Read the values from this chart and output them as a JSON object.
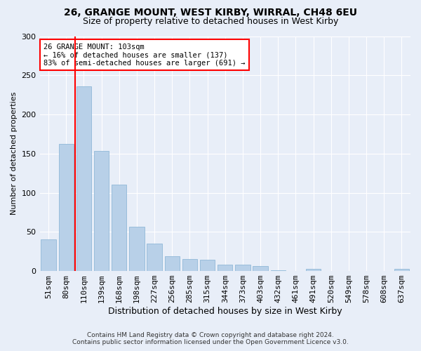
{
  "title1": "26, GRANGE MOUNT, WEST KIRBY, WIRRAL, CH48 6EU",
  "title2": "Size of property relative to detached houses in West Kirby",
  "xlabel": "Distribution of detached houses by size in West Kirby",
  "ylabel": "Number of detached properties",
  "categories": [
    "51sqm",
    "80sqm",
    "110sqm",
    "139sqm",
    "168sqm",
    "198sqm",
    "227sqm",
    "256sqm",
    "285sqm",
    "315sqm",
    "344sqm",
    "373sqm",
    "403sqm",
    "432sqm",
    "461sqm",
    "491sqm",
    "520sqm",
    "549sqm",
    "578sqm",
    "608sqm",
    "637sqm"
  ],
  "values": [
    40,
    162,
    236,
    153,
    110,
    57,
    35,
    19,
    15,
    14,
    8,
    8,
    6,
    1,
    0,
    3,
    0,
    0,
    0,
    0,
    3
  ],
  "bar_color": "#b8d0e8",
  "bar_edge_color": "#90b8d8",
  "vline_x": 1.5,
  "vline_color": "red",
  "annotation_text": "26 GRANGE MOUNT: 103sqm\n← 16% of detached houses are smaller (137)\n83% of semi-detached houses are larger (691) →",
  "annotation_box_color": "white",
  "annotation_box_edge_color": "red",
  "ylim": [
    0,
    300
  ],
  "yticks": [
    0,
    50,
    100,
    150,
    200,
    250,
    300
  ],
  "footer1": "Contains HM Land Registry data © Crown copyright and database right 2024.",
  "footer2": "Contains public sector information licensed under the Open Government Licence v3.0.",
  "background_color": "#e8eef8",
  "plot_background_color": "#e8eef8",
  "title1_fontsize": 10,
  "title2_fontsize": 9,
  "xlabel_fontsize": 9,
  "ylabel_fontsize": 8,
  "tick_fontsize": 8,
  "annotation_fontsize": 7.5,
  "footer_fontsize": 6.5
}
